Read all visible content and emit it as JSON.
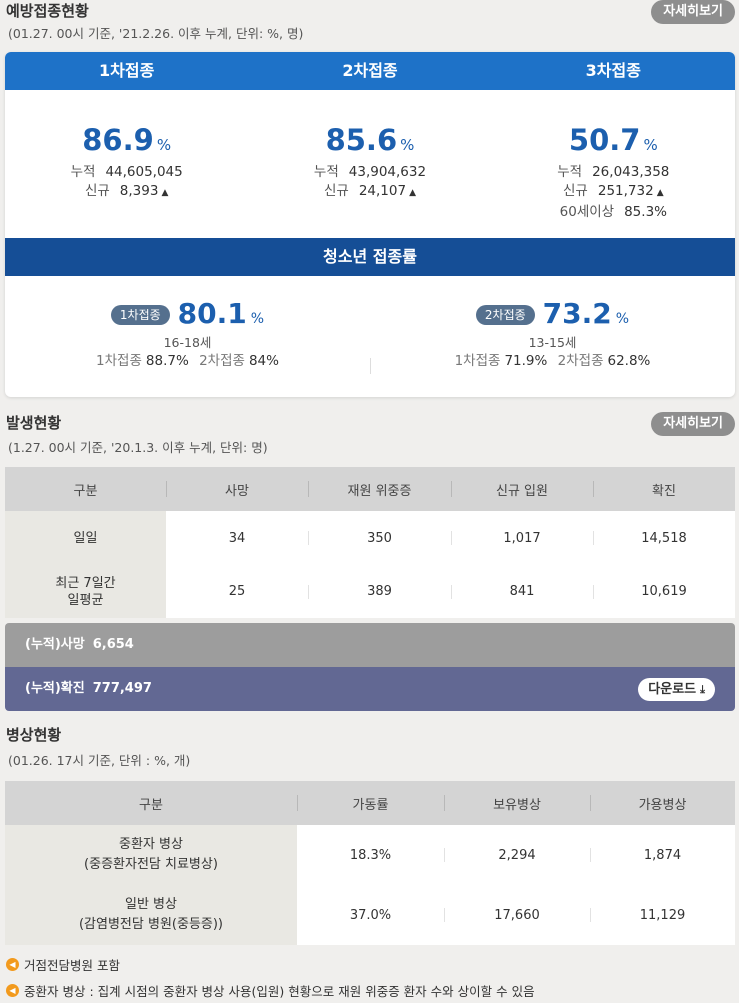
{
  "vaccine": {
    "title": "예방접종현황",
    "subtitle": "(01.27. 00시 기준, '21.2.26. 이후 누계, 단위: %, 명)",
    "more": "자세히보기",
    "dose1": {
      "label": "1차접종",
      "pct": "86.9",
      "unit": "%",
      "cum_label": "누적",
      "cum": "44,605,045",
      "new_label": "신규",
      "new": "8,393"
    },
    "dose2": {
      "label": "2차접종",
      "pct": "85.6",
      "unit": "%",
      "cum_label": "누적",
      "cum": "43,904,632",
      "new_label": "신규",
      "new": "24,107"
    },
    "dose3": {
      "label": "3차접종",
      "pct": "50.7",
      "unit": "%",
      "cum_label": "누적",
      "cum": "26,043,358",
      "new_label": "신규",
      "new": "251,732",
      "over60_label": "60세이상",
      "over60": "85.3%"
    },
    "youth": {
      "title": "청소년 접종률",
      "g1": {
        "badge": "1차접종",
        "pct": "80.1",
        "unit": "%",
        "age": "16-18세",
        "r1_label": "1차접종",
        "r1": "88.7%",
        "r2_label": "2차접종",
        "r2": "84%"
      },
      "g2": {
        "badge": "2차접종",
        "pct": "73.2",
        "unit": "%",
        "age": "13-15세",
        "r1_label": "1차접종",
        "r1": "71.9%",
        "r2_label": "2차접종",
        "r2": "62.8%"
      }
    }
  },
  "outbreak": {
    "title": "발생현황",
    "subtitle": "(1.27. 00시 기준, '20.1.3. 이후 누계, 단위: 명)",
    "more": "자세히보기",
    "headers": [
      "구분",
      "사망",
      "재원 위중증",
      "신규 입원",
      "확진"
    ],
    "rows": [
      {
        "label": "일일",
        "cells": [
          "34",
          "350",
          "1,017",
          "14,518"
        ]
      },
      {
        "label1": "최근 7일간",
        "label2": "일평균",
        "cells": [
          "25",
          "389",
          "841",
          "10,619"
        ]
      }
    ],
    "cum_death_label": "(누적)사망",
    "cum_death": "6,654",
    "cum_conf_label": "(누적)확진",
    "cum_conf": "777,497",
    "download": "다운로드"
  },
  "beds": {
    "title": "병상현황",
    "subtitle": "(01.26. 17시 기준, 단위 : %, 개)",
    "headers": [
      "구분",
      "가동률",
      "보유병상",
      "가용병상"
    ],
    "rows": [
      {
        "label1": "중환자 병상",
        "label2": "(중증환자전담 치료병상)",
        "cells": [
          "18.3%",
          "2,294",
          "1,874"
        ]
      },
      {
        "label1": "일반 병상",
        "label2": "(감염병전담 병원(중등증))",
        "cells": [
          "37.0%",
          "17,660",
          "11,129"
        ]
      }
    ],
    "notes": [
      "거점전담병원 포함",
      "중환자 병상 : 집계 시점의 중환자 병상 사용(입원) 현황으로 재원 위중증 환자 수와 상이할 수 있음"
    ]
  },
  "colors": {
    "header_blue": "#1e72c8",
    "youth_blue": "#154e96",
    "pct_blue": "#1c5fae",
    "death_bar": "#9d9d9d",
    "confirm_bar": "#626893",
    "note_orange": "#f29a1d"
  }
}
